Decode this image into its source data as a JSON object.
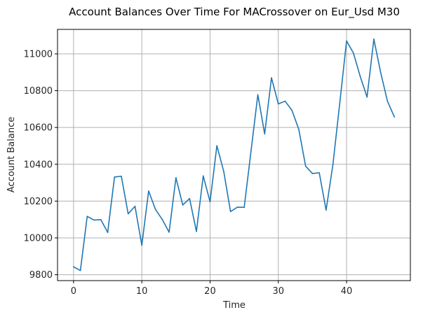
{
  "chart_data": {
    "type": "line",
    "title": "Account Balances Over Time For MACrossover on Eur_Usd M30",
    "xlabel": "Time",
    "ylabel": "Account Balance",
    "xlim": [
      -2.35,
      49.35
    ],
    "ylim": [
      9768,
      11133
    ],
    "xticks": [
      0,
      10,
      20,
      30,
      40
    ],
    "yticks": [
      9800,
      10000,
      10200,
      10400,
      10600,
      10800,
      11000
    ],
    "grid": true,
    "series": [
      {
        "color": "#1f77b4",
        "x": [
          0,
          1,
          2,
          3,
          4,
          5,
          6,
          7,
          8,
          9,
          10,
          11,
          12,
          13,
          14,
          15,
          16,
          17,
          18,
          19,
          20,
          21,
          22,
          23,
          24,
          25,
          26,
          27,
          28,
          29,
          30,
          31,
          32,
          33,
          34,
          35,
          36,
          37,
          38,
          39,
          40,
          41,
          42,
          43,
          44,
          45,
          46,
          47
        ],
        "values": [
          9843,
          9823,
          10117,
          10097,
          10099,
          10030,
          10331,
          10335,
          10131,
          10172,
          9960,
          10255,
          10155,
          10100,
          10031,
          10327,
          10179,
          10214,
          10035,
          10337,
          10196,
          10501,
          10362,
          10143,
          10167,
          10166,
          10471,
          10778,
          10565,
          10870,
          10728,
          10743,
          10693,
          10590,
          10390,
          10350,
          10354,
          10151,
          10398,
          10731,
          11070,
          11005,
          10878,
          10765,
          11080,
          10898,
          10742,
          10658
        ]
      }
    ]
  }
}
